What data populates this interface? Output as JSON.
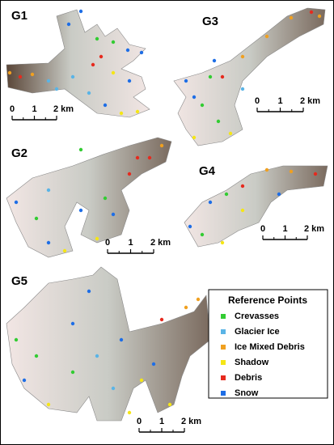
{
  "panels": [
    {
      "label": "G1",
      "scale": [
        "0",
        "1",
        "2 km"
      ]
    },
    {
      "label": "G3",
      "scale": [
        "0",
        "1",
        "2 km"
      ]
    },
    {
      "label": "G2",
      "scale": [
        "0",
        "1",
        "2 km"
      ]
    },
    {
      "label": "G4",
      "scale": [
        "0",
        "1",
        "2 km"
      ]
    },
    {
      "label": "G5",
      "scale": [
        "0",
        "1",
        "2 km"
      ]
    }
  ],
  "legend": {
    "title": "Reference Points",
    "items": [
      {
        "label": "Crevasses",
        "color": "#33cc33"
      },
      {
        "label": "Glacier Ice",
        "color": "#5ab4e6"
      },
      {
        "label": "Ice Mixed Debris",
        "color": "#f0a020"
      },
      {
        "label": "Shadow",
        "color": "#f5e616"
      },
      {
        "label": "Debris",
        "color": "#e62a1e"
      },
      {
        "label": "Snow",
        "color": "#1e6ee6"
      }
    ]
  }
}
